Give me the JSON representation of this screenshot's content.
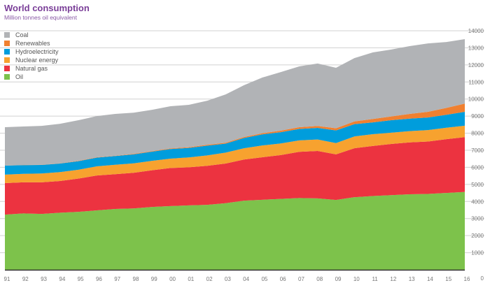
{
  "chart_data": {
    "type": "area",
    "stacked": true,
    "title": "World consumption",
    "subtitle": "Million tonnes oil equivalent",
    "xlabel": "",
    "ylabel": "",
    "x": [
      "91",
      "92",
      "93",
      "94",
      "95",
      "96",
      "97",
      "98",
      "99",
      "00",
      "01",
      "02",
      "03",
      "04",
      "05",
      "06",
      "07",
      "08",
      "09",
      "10",
      "11",
      "12",
      "13",
      "14",
      "15",
      "16"
    ],
    "ylim": [
      0,
      14000
    ],
    "yticks": [
      0,
      1000,
      2000,
      3000,
      4000,
      5000,
      6000,
      7000,
      8000,
      9000,
      10000,
      11000,
      12000,
      13000,
      14000
    ],
    "y_axis_side": "right",
    "grid": true,
    "legend_position": "top-left",
    "series": [
      {
        "name": "Oil",
        "color": "#7dc24b",
        "values": [
          3230,
          3300,
          3270,
          3340,
          3390,
          3480,
          3560,
          3590,
          3680,
          3730,
          3770,
          3800,
          3900,
          4050,
          4100,
          4150,
          4200,
          4180,
          4090,
          4250,
          4320,
          4370,
          4420,
          4440,
          4500,
          4560
        ]
      },
      {
        "name": "Natural gas",
        "color": "#ec3340",
        "values": [
          1845,
          1820,
          1850,
          1860,
          1950,
          2040,
          2040,
          2090,
          2150,
          2230,
          2230,
          2290,
          2320,
          2410,
          2490,
          2570,
          2710,
          2780,
          2670,
          2870,
          2930,
          3000,
          3040,
          3070,
          3150,
          3210
        ]
      },
      {
        "name": "Nuclear energy",
        "color": "#f7a22f",
        "values": [
          495,
          500,
          520,
          520,
          520,
          540,
          550,
          550,
          550,
          550,
          580,
          610,
          640,
          660,
          690,
          680,
          670,
          670,
          660,
          690,
          690,
          660,
          660,
          670,
          670,
          670
        ]
      },
      {
        "name": "Hydroelectricity",
        "color": "#009ddc",
        "values": [
          530,
          510,
          500,
          500,
          500,
          510,
          510,
          530,
          540,
          560,
          560,
          570,
          530,
          600,
          650,
          660,
          670,
          680,
          740,
          720,
          690,
          730,
          730,
          740,
          760,
          810
        ]
      },
      {
        "name": "Renewables",
        "color": "#f08030",
        "values": [
          0,
          10,
          10,
          10,
          20,
          20,
          20,
          30,
          30,
          40,
          40,
          50,
          50,
          60,
          70,
          90,
          100,
          110,
          130,
          160,
          200,
          220,
          280,
          330,
          400,
          480
        ]
      },
      {
        "name": "Coal",
        "color": "#b1b3b6",
        "values": [
          2250,
          2250,
          2280,
          2320,
          2380,
          2410,
          2450,
          2410,
          2420,
          2470,
          2480,
          2580,
          2830,
          3030,
          3260,
          3430,
          3560,
          3660,
          3540,
          3710,
          3900,
          3920,
          3970,
          4010,
          3860,
          3780
        ]
      }
    ],
    "legend_order": [
      "Coal",
      "Renewables",
      "Hydroelectricity",
      "Nuclear energy",
      "Natural gas",
      "Oil"
    ]
  }
}
